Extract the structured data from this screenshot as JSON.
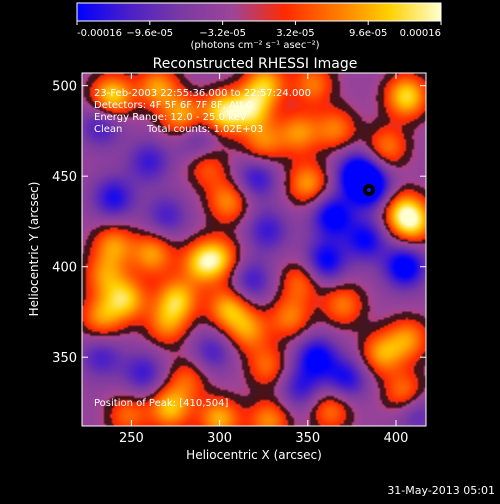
{
  "chart_data": {
    "type": "heatmap",
    "title": "Reconstructed RHESSI Image",
    "xlabel": "Heliocentric X (arcsec)",
    "ylabel": "Heliocentric Y (arcsec)",
    "xlim": [
      222,
      417
    ],
    "ylim": [
      312,
      507
    ],
    "x_ticks": [
      "250",
      "300",
      "350",
      "400"
    ],
    "y_ticks": [
      "350",
      "400",
      "450",
      "500"
    ],
    "colorbar": {
      "min": -0.00016,
      "max": 0.00016,
      "tick_labels": [
        "-0.00016",
        "−9.6e-05",
        "−3.2e-05",
        "3.2e-05",
        "9.6e-05",
        "0.00016"
      ],
      "units_label": "(photons cm⁻² s⁻¹ asec⁻²)",
      "colors": [
        "#0000ff",
        "#4b1fc8",
        "#7a3aa3",
        "#9d4498",
        "#ff2a00",
        "#ff7a00",
        "#ffd000",
        "#ffffd0"
      ]
    },
    "annotations": {
      "time_range": "23-Feb-2003 22:55:36.000 to 22:57:24.000",
      "detectors": "Detectors: 4F 5F 6F 7F 8F, Att 0",
      "energy_range": "Energy Range: 12.0 - 25.0 keV",
      "algorithm": "Clean",
      "total_counts": "Total counts: 1.02E+03",
      "peak": "Position of Peak: [410,504]"
    },
    "blobs": [
      {
        "x": 239,
        "y": 494,
        "v": 0.00016
      },
      {
        "x": 265,
        "y": 499,
        "v": 0.00012
      },
      {
        "x": 279,
        "y": 483,
        "v": 0.00013
      },
      {
        "x": 302,
        "y": 485,
        "v": 0.00016
      },
      {
        "x": 318,
        "y": 487,
        "v": 0.00014
      },
      {
        "x": 326,
        "y": 501,
        "v": 0.00013
      },
      {
        "x": 353,
        "y": 501,
        "v": 0.0001
      },
      {
        "x": 406,
        "y": 494,
        "v": 0.00016
      },
      {
        "x": 325,
        "y": 468,
        "v": 0.0001
      },
      {
        "x": 345,
        "y": 474,
        "v": 0.00011
      },
      {
        "x": 366,
        "y": 476,
        "v": 0.0001
      },
      {
        "x": 350,
        "y": 446,
        "v": 0.00012
      },
      {
        "x": 395,
        "y": 466,
        "v": 0.0001
      },
      {
        "x": 404,
        "y": 430,
        "v": 0.00013
      },
      {
        "x": 410,
        "y": 424,
        "v": 0.00012
      },
      {
        "x": 305,
        "y": 436,
        "v": 0.00011
      },
      {
        "x": 293,
        "y": 455,
        "v": 8e-05
      },
      {
        "x": 240,
        "y": 412,
        "v": 0.00011
      },
      {
        "x": 262,
        "y": 407,
        "v": 0.00012
      },
      {
        "x": 290,
        "y": 402,
        "v": 0.00013
      },
      {
        "x": 300,
        "y": 405,
        "v": 0.00011
      },
      {
        "x": 235,
        "y": 395,
        "v": 0.0001
      },
      {
        "x": 247,
        "y": 382,
        "v": 0.00014
      },
      {
        "x": 276,
        "y": 382,
        "v": 0.00014
      },
      {
        "x": 270,
        "y": 368,
        "v": 0.0001
      },
      {
        "x": 233,
        "y": 372,
        "v": 0.00011
      },
      {
        "x": 305,
        "y": 377,
        "v": 0.00013
      },
      {
        "x": 316,
        "y": 365,
        "v": 0.00011
      },
      {
        "x": 340,
        "y": 372,
        "v": 0.0001
      },
      {
        "x": 370,
        "y": 379,
        "v": 0.0001
      },
      {
        "x": 346,
        "y": 392,
        "v": 9e-05
      },
      {
        "x": 392,
        "y": 352,
        "v": 0.00012
      },
      {
        "x": 407,
        "y": 360,
        "v": 0.00011
      },
      {
        "x": 405,
        "y": 330,
        "v": 0.00011
      },
      {
        "x": 327,
        "y": 345,
        "v": 9e-05
      },
      {
        "x": 272,
        "y": 322,
        "v": 0.00014
      },
      {
        "x": 300,
        "y": 316,
        "v": 0.00013
      },
      {
        "x": 328,
        "y": 315,
        "v": 0.00011
      },
      {
        "x": 248,
        "y": 318,
        "v": 9e-05
      },
      {
        "x": 363,
        "y": 321,
        "v": 0.0001
      },
      {
        "x": 282,
        "y": 338,
        "v": 8e-05
      },
      {
        "x": 233,
        "y": 478,
        "v": -9e-05
      },
      {
        "x": 287,
        "y": 471,
        "v": -8e-05
      },
      {
        "x": 260,
        "y": 458,
        "v": -9e-05
      },
      {
        "x": 240,
        "y": 438,
        "v": -0.00011
      },
      {
        "x": 270,
        "y": 428,
        "v": -8e-05
      },
      {
        "x": 321,
        "y": 449,
        "v": -0.0001
      },
      {
        "x": 378,
        "y": 452,
        "v": -0.00014
      },
      {
        "x": 385,
        "y": 444,
        "v": -0.00016
      },
      {
        "x": 364,
        "y": 428,
        "v": -0.00014
      },
      {
        "x": 360,
        "y": 403,
        "v": -0.00013
      },
      {
        "x": 405,
        "y": 400,
        "v": -0.00015
      },
      {
        "x": 383,
        "y": 415,
        "v": -0.00012
      },
      {
        "x": 327,
        "y": 420,
        "v": -9e-05
      },
      {
        "x": 318,
        "y": 392,
        "v": -9e-05
      },
      {
        "x": 296,
        "y": 353,
        "v": -8e-05
      },
      {
        "x": 355,
        "y": 350,
        "v": -0.00013
      },
      {
        "x": 372,
        "y": 338,
        "v": -0.00011
      },
      {
        "x": 346,
        "y": 333,
        "v": -9e-05
      },
      {
        "x": 257,
        "y": 341,
        "v": -9e-05
      },
      {
        "x": 233,
        "y": 350,
        "v": -8e-05
      },
      {
        "x": 411,
        "y": 320,
        "v": -8e-05
      }
    ]
  },
  "footer": {
    "date": "31-May-2013 05:01"
  }
}
